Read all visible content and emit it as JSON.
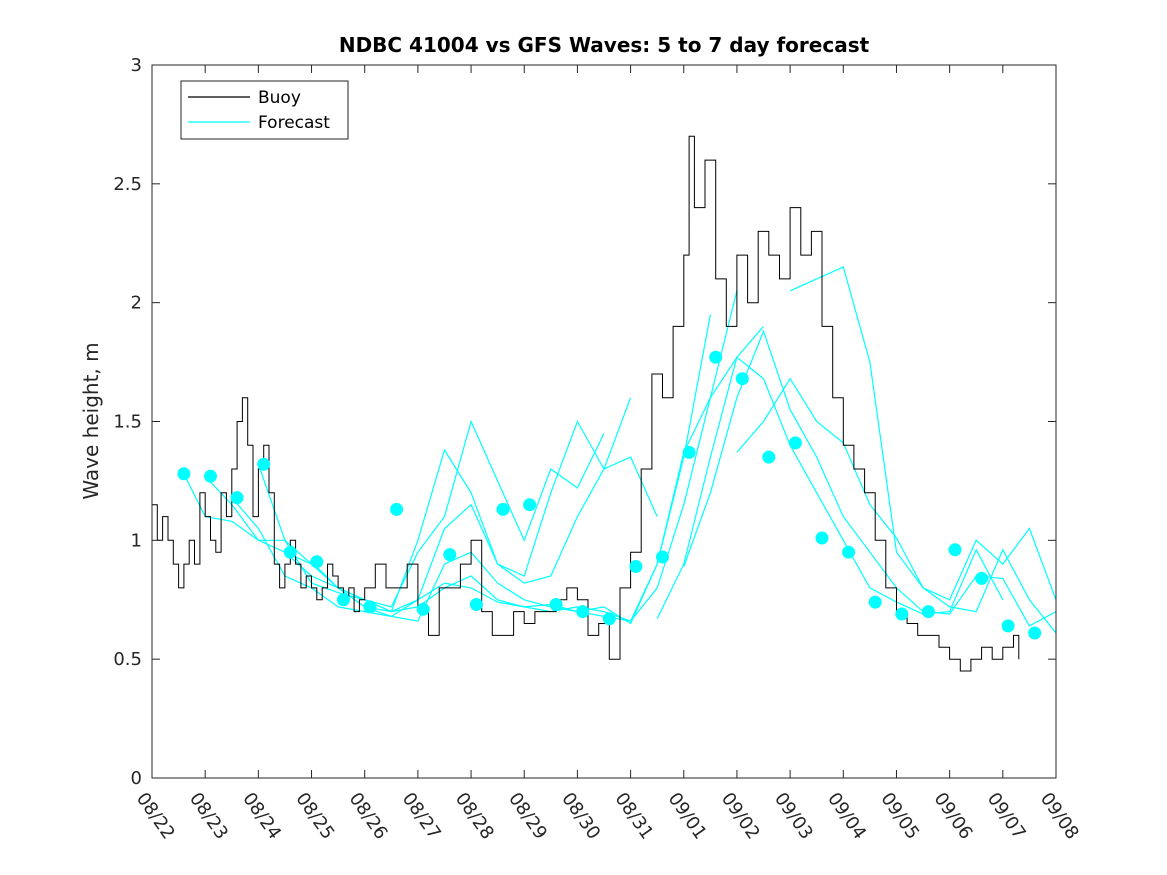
{
  "chart_data": {
    "type": "line",
    "title": "NDBC 41004 vs GFS Waves: 5 to 7 day forecast",
    "xlabel": "",
    "ylabel": "Wave height, m",
    "xlim": [
      0,
      17
    ],
    "ylim": [
      0,
      3
    ],
    "yticks": [
      0,
      0.5,
      1,
      1.5,
      2,
      2.5,
      3
    ],
    "ytick_labels": [
      "0",
      "0.5",
      "1",
      "1.5",
      "2",
      "2.5",
      "3"
    ],
    "xtick_labels": [
      "08/22",
      "08/23",
      "08/24",
      "08/25",
      "08/26",
      "08/27",
      "08/28",
      "08/29",
      "08/30",
      "08/31",
      "09/01",
      "09/02",
      "09/03",
      "09/04",
      "09/05",
      "09/06",
      "09/07",
      "09/08"
    ],
    "legend": {
      "position": "top-left",
      "entries": [
        {
          "label": "Buoy",
          "color": "#000000"
        },
        {
          "label": "Forecast",
          "color": "#00ffff"
        }
      ]
    },
    "colors": {
      "buoy": "#000000",
      "forecast": "#00ffff",
      "axes": "#262626"
    },
    "series": [
      {
        "name": "Buoy",
        "x": [
          0,
          0.1,
          0.2,
          0.3,
          0.4,
          0.5,
          0.6,
          0.7,
          0.8,
          0.9,
          1.0,
          1.1,
          1.2,
          1.3,
          1.4,
          1.5,
          1.6,
          1.7,
          1.8,
          1.9,
          2.0,
          2.1,
          2.2,
          2.3,
          2.4,
          2.5,
          2.6,
          2.7,
          2.8,
          2.9,
          3.0,
          3.1,
          3.2,
          3.3,
          3.4,
          3.5,
          3.6,
          3.7,
          3.8,
          3.9,
          4.0,
          4.2,
          4.4,
          4.6,
          4.8,
          5.0,
          5.2,
          5.4,
          5.6,
          5.8,
          6.0,
          6.2,
          6.4,
          6.6,
          6.8,
          7.0,
          7.2,
          7.4,
          7.6,
          7.8,
          8.0,
          8.2,
          8.4,
          8.6,
          8.8,
          9.0,
          9.2,
          9.4,
          9.6,
          9.8,
          10.0,
          10.1,
          10.2,
          10.4,
          10.6,
          10.8,
          11.0,
          11.2,
          11.4,
          11.6,
          11.8,
          12.0,
          12.2,
          12.4,
          12.6,
          12.8,
          13.0,
          13.2,
          13.4,
          13.6,
          13.8,
          14.0,
          14.2,
          14.4,
          14.6,
          14.8,
          15.0,
          15.2,
          15.4,
          15.6,
          15.8,
          16.0,
          16.2,
          16.3
        ],
        "y": [
          1.15,
          1.0,
          1.1,
          1.0,
          0.9,
          0.8,
          0.9,
          1.0,
          0.9,
          1.2,
          1.1,
          1.0,
          0.95,
          1.2,
          1.1,
          1.3,
          1.5,
          1.6,
          1.4,
          1.1,
          1.3,
          1.4,
          1.2,
          0.9,
          0.8,
          0.9,
          1.0,
          0.9,
          0.8,
          0.85,
          0.8,
          0.75,
          0.8,
          0.9,
          0.85,
          0.8,
          0.75,
          0.8,
          0.7,
          0.75,
          0.8,
          0.9,
          0.8,
          0.8,
          0.9,
          0.7,
          0.6,
          0.8,
          0.8,
          0.9,
          1.0,
          0.7,
          0.6,
          0.6,
          0.7,
          0.65,
          0.7,
          0.7,
          0.75,
          0.8,
          0.75,
          0.6,
          0.65,
          0.5,
          0.8,
          0.95,
          1.3,
          1.7,
          1.6,
          1.9,
          2.2,
          2.7,
          2.4,
          2.6,
          2.1,
          1.9,
          2.2,
          2.0,
          2.3,
          2.2,
          2.1,
          2.4,
          2.2,
          2.3,
          1.9,
          1.6,
          1.4,
          1.3,
          1.2,
          1.0,
          0.8,
          0.7,
          0.65,
          0.6,
          0.6,
          0.55,
          0.5,
          0.45,
          0.5,
          0.55,
          0.5,
          0.55,
          0.6,
          0.5
        ]
      },
      {
        "name": "Forecast",
        "paths": [
          {
            "x": [
              0.6,
              1.0,
              1.5,
              2.0,
              2.5,
              3.0,
              3.5,
              4.0,
              4.5,
              5.0,
              5.5,
              6.0,
              6.5,
              7.0,
              7.5,
              8.0,
              8.5
            ],
            "y": [
              1.28,
              1.1,
              1.08,
              1.0,
              1.0,
              0.82,
              0.78,
              0.75,
              0.72,
              0.95,
              1.1,
              1.5,
              1.25,
              1.0,
              1.3,
              1.22,
              1.45
            ]
          },
          {
            "x": [
              1.0,
              1.5,
              2.0,
              2.5,
              3.0,
              3.5,
              4.0,
              4.5,
              5.0,
              5.5,
              6.0,
              6.5,
              7.0,
              7.5,
              8.0,
              8.5,
              9.0
            ],
            "y": [
              1.27,
              1.15,
              1.0,
              0.95,
              0.9,
              0.8,
              0.75,
              0.7,
              1.0,
              1.38,
              1.2,
              0.9,
              0.85,
              1.2,
              1.5,
              1.3,
              1.6
            ]
          },
          {
            "x": [
              1.5,
              2.0,
              2.5,
              3.0,
              3.5,
              4.0,
              4.5,
              5.0,
              5.5,
              6.0,
              6.5,
              7.0,
              7.5,
              8.0,
              8.5,
              9.0,
              9.5
            ],
            "y": [
              1.18,
              1.05,
              0.85,
              0.8,
              0.72,
              0.7,
              0.68,
              0.75,
              1.05,
              1.15,
              0.9,
              0.82,
              0.85,
              1.1,
              1.3,
              1.35,
              1.1
            ]
          },
          {
            "x": [
              2.0,
              2.5,
              3.0,
              3.5,
              4.0,
              4.5,
              5.0,
              5.5,
              6.0,
              6.5,
              7.0,
              7.5,
              8.0,
              8.5,
              9.0,
              9.5,
              10.0,
              10.5
            ],
            "y": [
              1.32,
              1.0,
              0.9,
              0.8,
              0.72,
              0.68,
              0.66,
              0.9,
              0.95,
              0.82,
              0.75,
              0.72,
              0.7,
              0.72,
              0.65,
              0.9,
              1.35,
              1.95
            ]
          },
          {
            "x": [
              2.5,
              3.0,
              3.5,
              4.0,
              4.5,
              5.0,
              5.5,
              6.0,
              6.5,
              7.0,
              7.5,
              8.0,
              8.5,
              9.0,
              9.5,
              10.0,
              10.5,
              11.0
            ],
            "y": [
              0.95,
              0.85,
              0.8,
              0.72,
              0.7,
              0.72,
              0.8,
              0.85,
              0.75,
              0.72,
              0.7,
              0.72,
              0.7,
              0.66,
              0.8,
              1.15,
              1.6,
              2.05
            ]
          },
          {
            "x": [
              3.0,
              3.5,
              4.0,
              4.5,
              5.0,
              5.5,
              6.0,
              6.5,
              7.0,
              7.5,
              8.0,
              8.5,
              9.0,
              9.5,
              10.0,
              10.5,
              11.0,
              11.5
            ],
            "y": [
              0.91,
              0.8,
              0.75,
              0.7,
              0.75,
              0.82,
              0.8,
              0.74,
              0.72,
              0.73,
              0.7,
              0.68,
              0.66,
              0.9,
              1.37,
              1.6,
              1.77,
              1.9
            ]
          },
          {
            "x": [
              9.5,
              10.0,
              10.5,
              11.0,
              11.5,
              12.0,
              12.5,
              13.0,
              13.5,
              14.0,
              14.5,
              15.0,
              15.5,
              16.0
            ],
            "y": [
              0.67,
              0.9,
              1.35,
              1.77,
              1.68,
              1.4,
              1.2,
              1.0,
              0.8,
              0.74,
              0.69,
              0.7,
              0.96,
              0.75
            ]
          },
          {
            "x": [
              10.0,
              10.5,
              11.0,
              11.5,
              12.0,
              12.5,
              13.0,
              13.5,
              14.0,
              14.5,
              15.0,
              15.5,
              16.0,
              16.5,
              17.0
            ],
            "y": [
              0.89,
              1.2,
              1.6,
              1.88,
              1.55,
              1.35,
              1.1,
              0.95,
              0.8,
              0.7,
              0.69,
              0.85,
              0.84,
              0.64,
              0.7
            ]
          },
          {
            "x": [
              11.0,
              11.5,
              12.0,
              12.5,
              13.0,
              13.5,
              14.0,
              14.5,
              15.0,
              15.5,
              16.0,
              16.5,
              17.0
            ],
            "y": [
              1.37,
              1.5,
              1.68,
              1.5,
              1.41,
              1.15,
              1.01,
              0.8,
              0.72,
              0.7,
              0.96,
              0.75,
              0.61
            ]
          },
          {
            "x": [
              12.0,
              12.5,
              13.0,
              13.5,
              14.0,
              14.5,
              15.0,
              15.5,
              16.0,
              16.5,
              17.0
            ],
            "y": [
              2.05,
              2.1,
              2.15,
              1.75,
              0.95,
              0.8,
              0.75,
              1.0,
              0.9,
              1.05,
              0.75
            ]
          }
        ],
        "markers": {
          "x": [
            0.6,
            1.1,
            1.6,
            2.1,
            2.6,
            3.1,
            3.6,
            4.1,
            4.6,
            5.1,
            5.6,
            6.1,
            6.6,
            7.1,
            7.6,
            8.1,
            8.6,
            9.1,
            9.6,
            10.1,
            10.6,
            11.1,
            11.6,
            12.1,
            12.6,
            13.1,
            13.6,
            14.1,
            14.6,
            15.1,
            15.6,
            16.1,
            16.6
          ],
          "y": [
            1.28,
            1.27,
            1.18,
            1.32,
            0.95,
            0.91,
            0.75,
            0.72,
            1.13,
            0.71,
            0.94,
            0.73,
            1.13,
            1.15,
            0.73,
            0.7,
            0.67,
            0.89,
            0.93,
            1.37,
            1.77,
            1.68,
            1.35,
            1.41,
            1.01,
            0.95,
            0.74,
            0.69,
            0.7,
            0.96,
            0.84,
            0.64,
            0.61
          ]
        }
      }
    ]
  }
}
